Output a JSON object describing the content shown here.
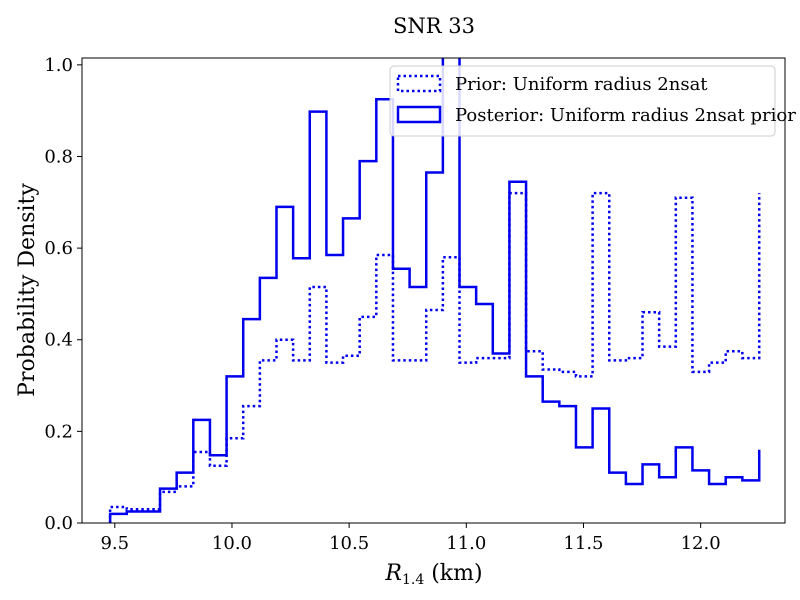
{
  "chart_data": {
    "type": "histogram-step",
    "title": "SNR 33",
    "xlabel_main": "R",
    "xlabel_sub": "1.4",
    "xlabel_unit": " (km)",
    "ylabel": "Probability Density",
    "xlim": [
      9.36,
      12.36
    ],
    "ylim": [
      0.0,
      1.015
    ],
    "xticks": [
      9.5,
      10.0,
      10.5,
      11.0,
      11.5,
      12.0
    ],
    "xtick_labels": [
      "9.5",
      "10.0",
      "10.5",
      "11.0",
      "11.5",
      "12.0"
    ],
    "yticks": [
      0.0,
      0.2,
      0.4,
      0.6,
      0.8,
      1.0
    ],
    "ytick_labels": [
      "0.0",
      "0.2",
      "0.4",
      "0.6",
      "0.8",
      "1.0"
    ],
    "bin_edges": [
      9.48,
      9.551,
      9.622,
      9.693,
      9.764,
      9.835,
      9.906,
      9.977,
      10.048,
      10.119,
      10.19,
      10.261,
      10.332,
      10.403,
      10.474,
      10.545,
      10.616,
      10.687,
      10.758,
      10.829,
      10.9,
      10.971,
      11.042,
      11.113,
      11.184,
      11.255,
      11.326,
      11.397,
      11.468,
      11.539,
      11.61,
      11.681,
      11.752,
      11.823,
      11.894,
      11.965,
      12.036,
      12.107,
      12.178,
      12.25
    ],
    "series": [
      {
        "name": "Prior: Uniform radius 2nsat",
        "style": "dotted",
        "color": "#0000ee",
        "values": [
          0.035,
          0.03,
          0.03,
          0.068,
          0.08,
          0.155,
          0.125,
          0.185,
          0.255,
          0.355,
          0.4,
          0.355,
          0.515,
          0.35,
          0.365,
          0.45,
          0.585,
          0.355,
          0.355,
          0.465,
          0.58,
          0.35,
          0.36,
          0.36,
          0.72,
          0.375,
          0.335,
          0.33,
          0.32,
          0.72,
          0.355,
          0.36,
          0.46,
          0.385,
          0.71,
          0.33,
          0.35,
          0.375,
          0.36,
          0.72
        ]
      },
      {
        "name": "Posterior: Uniform radius 2nsat prior",
        "style": "solid",
        "color": "#0000ee",
        "values": [
          0.02,
          0.025,
          0.025,
          0.075,
          0.11,
          0.225,
          0.148,
          0.32,
          0.445,
          0.535,
          0.69,
          0.578,
          0.898,
          0.585,
          0.665,
          0.79,
          0.925,
          0.555,
          0.515,
          0.765,
          1.05,
          0.515,
          0.478,
          0.37,
          0.745,
          0.32,
          0.265,
          0.255,
          0.165,
          0.25,
          0.11,
          0.085,
          0.128,
          0.1,
          0.165,
          0.115,
          0.085,
          0.1,
          0.093,
          0.16
        ]
      }
    ],
    "legend_position": "upper-right"
  }
}
